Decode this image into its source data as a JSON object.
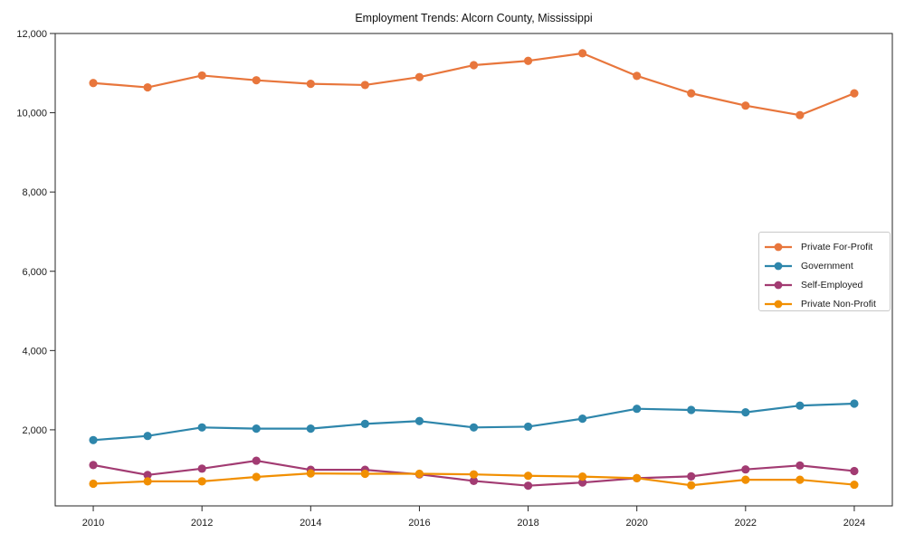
{
  "chart_data": {
    "type": "line",
    "title": "Employment Trends: Alcorn County, Mississippi",
    "xlabel": "",
    "ylabel": "",
    "grid": false,
    "legend_position": "center-right",
    "xlim": [
      2009.3,
      2024.7
    ],
    "ylim": [
      80,
      12000
    ],
    "xticks": [
      2010,
      2012,
      2014,
      2016,
      2018,
      2020,
      2022,
      2024
    ],
    "yticks": [
      2000,
      4000,
      6000,
      8000,
      10000,
      12000
    ],
    "ytick_labels": [
      "2,000",
      "4,000",
      "6,000",
      "8,000",
      "10,000",
      "12,000"
    ],
    "x": [
      2010,
      2011,
      2012,
      2013,
      2014,
      2015,
      2016,
      2017,
      2018,
      2019,
      2020,
      2021,
      2022,
      2023,
      2024
    ],
    "series": [
      {
        "name": "Private For-Profit",
        "color": "#E8763C",
        "values": [
          10750,
          10640,
          10940,
          10820,
          10730,
          10700,
          10900,
          11200,
          11310,
          11500,
          10930,
          10490,
          10180,
          9940,
          10490
        ]
      },
      {
        "name": "Government",
        "color": "#2E86AB",
        "values": [
          1740,
          1845,
          2060,
          2030,
          2030,
          2150,
          2220,
          2060,
          2080,
          2280,
          2530,
          2500,
          2440,
          2610,
          2660
        ]
      },
      {
        "name": "Self-Employed",
        "color": "#A23B72",
        "values": [
          1110,
          860,
          1020,
          1220,
          990,
          990,
          875,
          710,
          590,
          670,
          780,
          825,
          1000,
          1100,
          960
        ]
      },
      {
        "name": "Private Non-Profit",
        "color": "#F18F01",
        "values": [
          640,
          700,
          700,
          810,
          900,
          890,
          890,
          875,
          840,
          820,
          780,
          600,
          740,
          740,
          615
        ]
      }
    ],
    "marker": "circle",
    "marker_radius": 4.6,
    "line_width": 2.2,
    "axis_color": "#262626",
    "tick_label_color": "#1a1a1a",
    "background_color": "#ffffff"
  }
}
